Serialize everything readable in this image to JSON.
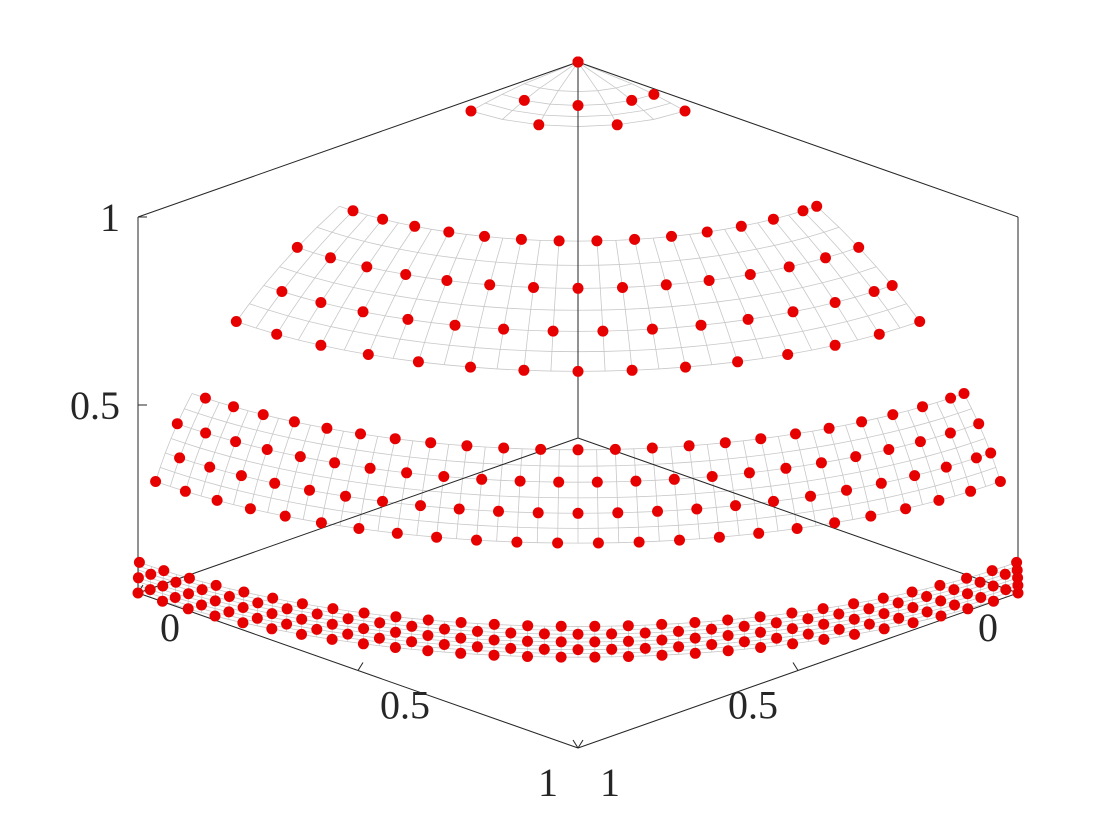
{
  "chart_data": {
    "type": "scatter",
    "title": "",
    "xlabel": "",
    "ylabel": "",
    "zlabel": "",
    "projection": "3d",
    "view": "isometric",
    "grid": false,
    "point_color": "#e60000",
    "mesh_color": "#c8c8c8",
    "axis_color": "#262626",
    "xlim": [
      0,
      1
    ],
    "ylim": [
      0,
      1
    ],
    "zlim": [
      0,
      1
    ],
    "tick_labels": {
      "x": [
        "0",
        "0.5",
        "1"
      ],
      "y": [
        "0",
        "0.5",
        "1"
      ],
      "z": [
        "0.5",
        "1"
      ]
    },
    "x_ticks": [
      0,
      0.5,
      1
    ],
    "y_ticks": [
      0,
      0.5,
      1
    ],
    "z_ticks": [
      0.5,
      1
    ],
    "series": [
      {
        "description": "points on the first-octant part of a sphere of radius r, sampled between heights z_min and z_max",
        "layers": [
          {
            "radius": 1.0,
            "z_min": 0.0,
            "z_max": 0.08,
            "rings": 5,
            "points_per_ring": 30
          },
          {
            "radius": 1.0,
            "z_min": 0.28,
            "z_max": 0.48,
            "rings": 4,
            "points_per_ring": 24
          },
          {
            "radius": 1.0,
            "z_min": 0.63,
            "z_max": 0.84,
            "rings": 4,
            "points_per_ring": 15
          },
          {
            "radius": 1.0,
            "z_min": 0.97,
            "z_max": 1.0,
            "rings": 3,
            "points_per_ring": 4
          }
        ]
      }
    ]
  }
}
